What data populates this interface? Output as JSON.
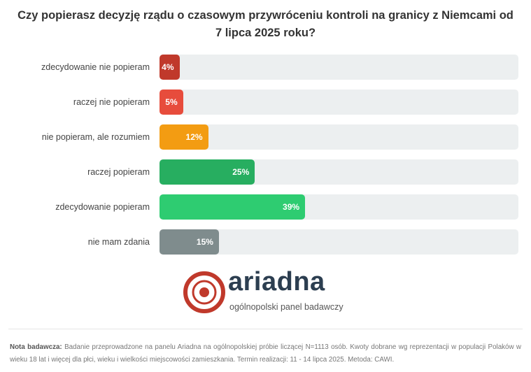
{
  "chart_data": {
    "type": "bar",
    "orientation": "horizontal",
    "title": "Czy popierasz decyzję rządu o czasowym przywróceniu kontroli na granicy z Niemcami od 7 lipca 2025 roku?",
    "categories": [
      "zdecydowanie nie popieram",
      "raczej nie popieram",
      "nie popieram, ale rozumiem",
      "raczej popieram",
      "zdecydowanie popieram",
      "nie mam zdania"
    ],
    "values": [
      4,
      5,
      12,
      25,
      39,
      15
    ],
    "value_labels": [
      "4%",
      "5%",
      "12%",
      "25%",
      "39%",
      "15%"
    ],
    "colors": [
      "#c0392b",
      "#e74c3c",
      "#f39c12",
      "#27ae60",
      "#2ecc71",
      "#7f8c8d"
    ],
    "xlim": [
      0,
      100
    ],
    "unit": "%"
  },
  "logo": {
    "name": "ariadna",
    "tagline": "ogólnopolski panel badawczy"
  },
  "note": {
    "label": "Nota badawcza:",
    "text": "Badanie przeprowadzone na panelu Ariadna na ogólnopolskiej próbie liczącej N=1113 osób. Kwoty dobrane wg reprezentacji w populacji Polaków w wieku 18 lat i więcej dla płci, wieku i wielkości miejscowości zamieszkania. Termin realizacji: 11 - 14 lipca 2025. Metoda: CAWI."
  }
}
